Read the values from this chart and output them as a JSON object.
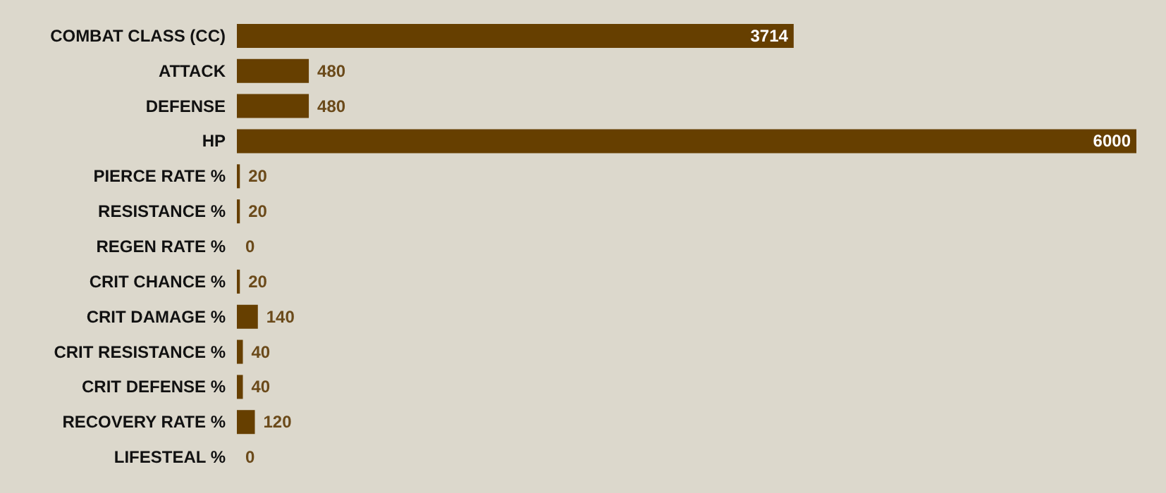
{
  "chart_data": {
    "type": "bar",
    "orientation": "horizontal",
    "categories": [
      "COMBAT CLASS (CC)",
      "ATTACK",
      "DEFENSE",
      "HP",
      "PIERCE RATE %",
      "RESISTANCE %",
      "REGEN RATE %",
      "CRIT CHANCE %",
      "CRIT DAMAGE %",
      "CRIT RESISTANCE %",
      "CRIT DEFENSE %",
      "RECOVERY RATE %",
      "LIFESTEAL %"
    ],
    "values": [
      3714,
      480,
      480,
      6000,
      20,
      20,
      0,
      20,
      140,
      40,
      40,
      120,
      0
    ],
    "data_labels": true,
    "color": "#663f00"
  }
}
